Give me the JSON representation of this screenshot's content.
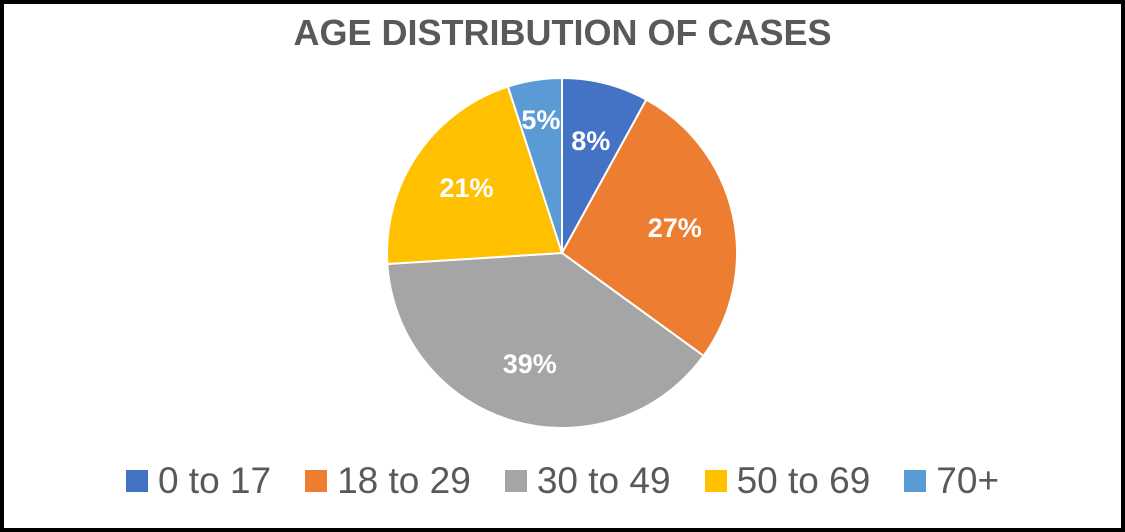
{
  "chart_data": {
    "type": "pie",
    "title": "AGE DISTRIBUTION OF CASES",
    "categories": [
      "0 to 17",
      "18 to 29",
      "30 to 49",
      "50 to 69",
      "70+"
    ],
    "values": [
      8,
      27,
      39,
      21,
      5
    ],
    "labels": [
      "8%",
      "27%",
      "39%",
      "21%",
      "5%"
    ],
    "colors": [
      "#4472C4",
      "#ED7D31",
      "#A5A5A5",
      "#FFC000",
      "#5B9BD5"
    ],
    "legend": "bottom"
  }
}
